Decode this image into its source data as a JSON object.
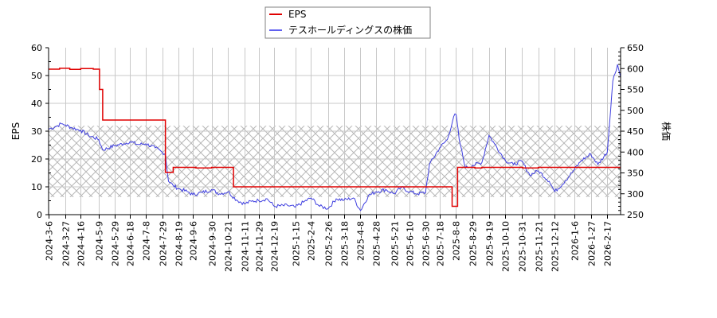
{
  "chart_data": {
    "type": "line",
    "title": "",
    "legend": {
      "position": "top-center",
      "entries": [
        {
          "label": "EPS",
          "color": "#e00000"
        },
        {
          "label": "テスホールディングスの株価",
          "color": "#4040e0"
        }
      ]
    },
    "xlabel": "",
    "ylabel_left": "EPS",
    "ylabel_right": "株価",
    "ylim_left": [
      0,
      60
    ],
    "ylim_right": [
      250,
      650
    ],
    "yticks_left": [
      0,
      10,
      20,
      30,
      40,
      50,
      60
    ],
    "yticks_right": [
      250,
      300,
      350,
      400,
      450,
      500,
      550,
      600,
      650
    ],
    "grid": true,
    "hatched_band_price_range": [
      292,
      463
    ],
    "x_tick_labels": [
      "2024-3-6",
      "2024-3-27",
      "2024-4-16",
      "2024-5-9",
      "2024-5-29",
      "2024-6-18",
      "2024-7-8",
      "2024-7-29",
      "2024-8-19",
      "2024-9-6",
      "2024-9-30",
      "2024-10-21",
      "2024-11-11",
      "2024-11-29",
      "2024-12-19",
      "2025-1-15",
      "2025-2-4",
      "2025-2-26",
      "2025-3-18",
      "2025-4-8",
      "2025-4-28",
      "2025-5-21",
      "2025-6-10",
      "2025-6-30",
      "2025-7-18",
      "2025-8-8",
      "2025-8-29",
      "2025-9-19",
      "2025-10-10",
      "2025-10-31",
      "2025-11-21",
      "2025-12-12",
      "2026-1-6",
      "2026-1-27",
      "2026-2-17"
    ],
    "series": [
      {
        "name": "EPS",
        "axis": "left",
        "color": "#e00000",
        "x": [
          "2024-3-6",
          "2024-3-20",
          "2024-4-2",
          "2024-4-16",
          "2024-5-2",
          "2024-5-10",
          "2024-5-14",
          "2024-7-29",
          "2024-8-2",
          "2024-8-12",
          "2024-9-10",
          "2024-9-30",
          "2024-10-28",
          "2025-8-1",
          "2025-8-3",
          "2025-8-8",
          "2025-8-10",
          "2025-9-1",
          "2025-9-10",
          "2025-11-1",
          "2025-11-21",
          "2026-3-6"
        ],
        "values": [
          52.3,
          52.6,
          52.2,
          52.5,
          52.3,
          45.0,
          34.0,
          34.0,
          15.2,
          17.0,
          16.8,
          17.0,
          10.0,
          10.0,
          3.0,
          3.0,
          17.0,
          16.8,
          17.0,
          16.8,
          17.0,
          17.0
        ]
      },
      {
        "name": "テスホールディングスの株価",
        "axis": "right",
        "color": "#4040e0",
        "x": [
          "2024-3-6",
          "2024-3-14",
          "2024-3-22",
          "2024-3-27",
          "2024-4-5",
          "2024-4-16",
          "2024-4-26",
          "2024-5-9",
          "2024-5-14",
          "2024-5-29",
          "2024-6-10",
          "2024-6-18",
          "2024-6-28",
          "2024-7-8",
          "2024-7-20",
          "2024-7-29",
          "2024-8-2",
          "2024-8-6",
          "2024-8-12",
          "2024-8-19",
          "2024-8-30",
          "2024-9-6",
          "2024-9-18",
          "2024-9-30",
          "2024-10-10",
          "2024-10-21",
          "2024-11-1",
          "2024-11-11",
          "2024-11-20",
          "2024-11-29",
          "2024-12-10",
          "2024-12-19",
          "2025-1-5",
          "2025-1-15",
          "2025-1-25",
          "2025-2-4",
          "2025-2-15",
          "2025-2-26",
          "2025-3-8",
          "2025-3-18",
          "2025-3-30",
          "2025-4-8",
          "2025-4-18",
          "2025-4-28",
          "2025-5-10",
          "2025-5-21",
          "2025-5-30",
          "2025-6-10",
          "2025-6-20",
          "2025-6-30",
          "2025-7-5",
          "2025-7-18",
          "2025-7-28",
          "2025-8-5",
          "2025-8-8",
          "2025-8-12",
          "2025-8-20",
          "2025-8-29",
          "2025-9-10",
          "2025-9-19",
          "2025-9-26",
          "2025-10-10",
          "2025-10-20",
          "2025-10-31",
          "2025-11-10",
          "2025-11-21",
          "2025-12-5",
          "2025-12-12",
          "2025-12-25",
          "2026-1-6",
          "2026-1-15",
          "2026-1-27",
          "2026-2-5",
          "2026-2-17",
          "2026-2-24",
          "2026-3-2",
          "2026-3-6"
        ],
        "values": [
          455,
          460,
          468,
          465,
          458,
          452,
          440,
          430,
          405,
          415,
          420,
          425,
          418,
          420,
          410,
          400,
          395,
          330,
          320,
          312,
          305,
          298,
          303,
          310,
          300,
          305,
          285,
          276,
          282,
          284,
          288,
          270,
          272,
          268,
          280,
          290,
          270,
          265,
          288,
          285,
          290,
          260,
          295,
          305,
          310,
          300,
          315,
          305,
          300,
          303,
          370,
          410,
          430,
          485,
          490,
          430,
          362,
          368,
          375,
          440,
          420,
          380,
          370,
          378,
          345,
          355,
          330,
          305,
          330,
          358,
          380,
          395,
          370,
          400,
          570,
          610,
          580
        ]
      }
    ]
  }
}
